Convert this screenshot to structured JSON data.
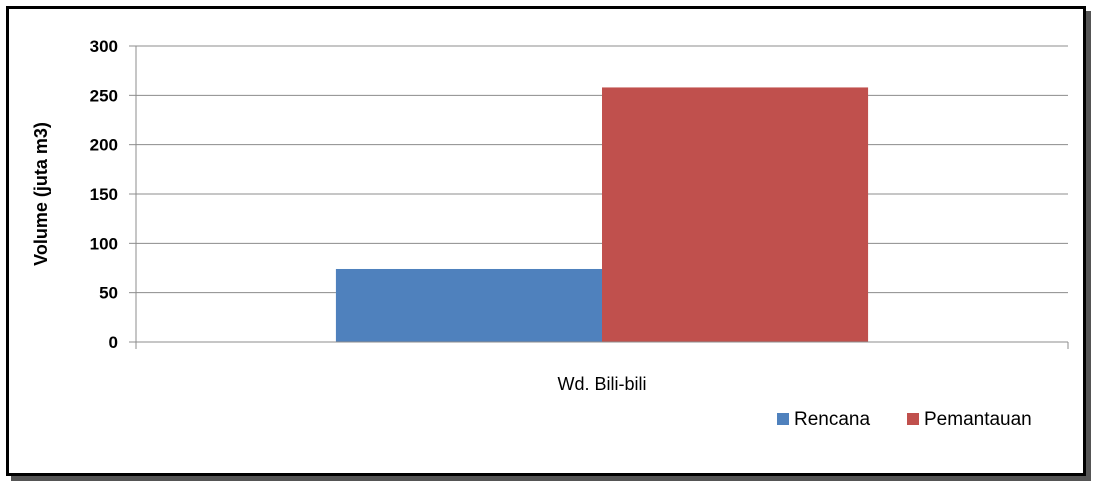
{
  "chart_data": {
    "type": "bar",
    "categories": [
      "Wd. Bili-bili"
    ],
    "series": [
      {
        "name": "Rencana",
        "values": [
          74
        ],
        "color": "#4F81BD"
      },
      {
        "name": "Pemantauan",
        "values": [
          258
        ],
        "color": "#C0504D"
      }
    ],
    "xlabel": "",
    "ylabel": "Volume (juta m3)",
    "ylim": [
      0,
      300
    ],
    "yticks": [
      0,
      50,
      100,
      150,
      200,
      250,
      300
    ],
    "grid": true,
    "legend_position": "bottom-right"
  }
}
